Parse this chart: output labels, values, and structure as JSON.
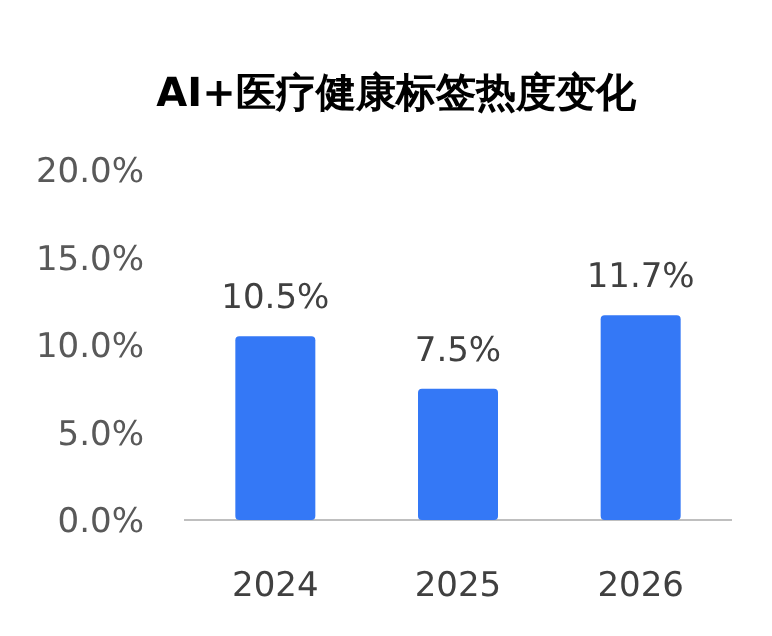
{
  "chart_data": {
    "type": "bar",
    "title": "AI+医疗健康标签热度变化",
    "categories": [
      "2024",
      "2025",
      "2026"
    ],
    "values": [
      10.5,
      7.5,
      11.7
    ],
    "value_labels": [
      "10.5%",
      "7.5%",
      "11.7%"
    ],
    "color": "#3478f6",
    "ylim": [
      0,
      20
    ],
    "yticks": [
      {
        "value": 0,
        "label": "0.0%"
      },
      {
        "value": 5,
        "label": "5.0%"
      },
      {
        "value": 10,
        "label": "10.0%"
      },
      {
        "value": 15,
        "label": "15.0%"
      },
      {
        "value": 20,
        "label": "20.0%"
      }
    ]
  }
}
